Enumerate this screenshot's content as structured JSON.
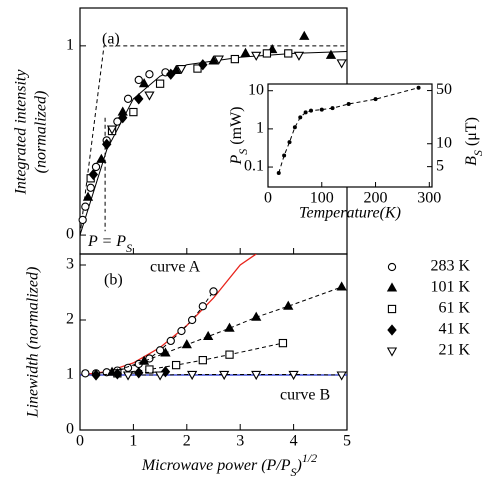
{
  "chart_data": [
    {
      "type": "scatter",
      "panel_label": "(a)",
      "y_label": [
        "Integrated intensity",
        "(normalized)"
      ],
      "annotation": [
        "P = P",
        "S"
      ],
      "xlim": [
        0,
        5
      ],
      "xticks": [
        0,
        1,
        2,
        3,
        4,
        5
      ],
      "ylim": [
        -0.1,
        1.2
      ],
      "yticks": [
        0,
        1
      ],
      "series": [
        {
          "marker": "circle",
          "color": "#000",
          "x": [
            0.05,
            0.1,
            0.2,
            0.3,
            0.5,
            0.7,
            0.9,
            1.1,
            1.3,
            1.6
          ],
          "values": [
            0.08,
            0.15,
            0.25,
            0.36,
            0.5,
            0.6,
            0.72,
            0.82,
            0.85,
            0.86
          ]
        },
        {
          "marker": "triangle",
          "color": "#000",
          "x": [
            0.15,
            0.4,
            0.8,
            1.2,
            1.8,
            2.5,
            3.1,
            3.6,
            4.2,
            4.7
          ],
          "values": [
            0.2,
            0.4,
            0.65,
            0.8,
            0.87,
            0.92,
            0.96,
            0.98,
            1.05,
            0.95
          ]
        },
        {
          "marker": "square",
          "color": "#000",
          "x": [
            0.2,
            0.6,
            1.0,
            1.5,
            2.2,
            2.9,
            3.5,
            3.9
          ],
          "values": [
            0.3,
            0.55,
            0.65,
            0.8,
            0.88,
            0.93,
            0.96,
            0.96
          ]
        },
        {
          "marker": "diamond",
          "color": "#000",
          "x": [
            0.25,
            0.5,
            0.8,
            1.1,
            1.7,
            2.3
          ],
          "values": [
            0.32,
            0.48,
            0.62,
            0.72,
            0.85,
            0.9
          ]
        },
        {
          "marker": "triangle-down",
          "color": "#000",
          "x": [
            0.6,
            1.3,
            1.9,
            2.6,
            3.3,
            4.1,
            4.9
          ],
          "values": [
            0.56,
            0.74,
            0.88,
            0.93,
            0.95,
            0.95,
            0.91
          ]
        }
      ],
      "lines": [
        {
          "linestyle": "solid",
          "color": "#000",
          "x": [
            0,
            0.5,
            1,
            1.5,
            2,
            3,
            4,
            5
          ],
          "values": [
            0,
            0.45,
            0.72,
            0.84,
            0.9,
            0.94,
            0.96,
            0.97
          ]
        },
        {
          "linestyle": "dashed",
          "color": "#000",
          "x": [
            0,
            0.45,
            5
          ],
          "values": [
            0,
            1,
            1
          ]
        },
        {
          "linestyle": "dashed",
          "color": "#000",
          "x": [
            0.47,
            0.47
          ],
          "values": [
            0.62,
            0.02
          ]
        }
      ]
    },
    {
      "type": "line",
      "x_label": "Temperature(K)",
      "y_label": [
        "P",
        "S",
        " (mW)"
      ],
      "y2_label": [
        "B",
        "S",
        " (μT)"
      ],
      "xlim": [
        0,
        305
      ],
      "xticks": [
        0,
        100,
        200,
        300
      ],
      "ylim": [
        0.03,
        15
      ],
      "yticks": [
        0.1,
        1,
        10
      ],
      "yscale": "log",
      "y2lim": [
        2.7,
        61
      ],
      "y2ticks": [
        5,
        10,
        50
      ],
      "y2scale": "log",
      "series": [
        {
          "color": "#000",
          "linestyle": "dashed",
          "x": [
            20,
            30,
            40,
            50,
            60,
            70,
            80,
            100,
            120,
            150,
            200,
            280
          ],
          "values": [
            0.07,
            0.2,
            0.45,
            1.1,
            2.0,
            2.7,
            3.0,
            3.2,
            3.5,
            4.5,
            6,
            12
          ]
        }
      ]
    },
    {
      "type": "scatter",
      "panel_label": "(b)",
      "y_label": "Linewidth (normalized)",
      "x_label": [
        "Microwave power  (P/P",
        "S",
        ")",
        "1/2"
      ],
      "xlim": [
        0,
        5
      ],
      "xticks": [
        0,
        1,
        2,
        3,
        4,
        5
      ],
      "ylim": [
        0,
        3.2
      ],
      "yticks": [
        0,
        1,
        2,
        3
      ],
      "series": [
        {
          "name": "283 K",
          "marker": "circle",
          "color": "#000",
          "x": [
            0.1,
            0.3,
            0.5,
            0.7,
            0.9,
            1.1,
            1.3,
            1.5,
            1.7,
            1.9,
            2.1,
            2.3,
            2.5
          ],
          "values": [
            1.03,
            1.03,
            1.05,
            1.08,
            1.13,
            1.2,
            1.3,
            1.45,
            1.62,
            1.8,
            2.0,
            2.25,
            2.52
          ]
        },
        {
          "name": "101 K",
          "marker": "triangle",
          "color": "#000",
          "x": [
            0.6,
            1.2,
            1.6,
            2.0,
            2.4,
            2.8,
            3.3,
            3.9,
            4.9
          ],
          "values": [
            1.05,
            1.25,
            1.4,
            1.55,
            1.7,
            1.85,
            2.05,
            2.25,
            2.6
          ]
        },
        {
          "name": "61 K",
          "marker": "square",
          "color": "#000",
          "x": [
            0.7,
            1.3,
            1.8,
            2.3,
            2.8,
            3.8
          ],
          "values": [
            1.03,
            1.1,
            1.18,
            1.27,
            1.37,
            1.58
          ]
        },
        {
          "name": "41 K",
          "marker": "diamond",
          "color": "#000",
          "x": [
            0.3,
            0.7,
            1.1,
            1.6
          ],
          "values": [
            1.0,
            1.02,
            1.04,
            1.06
          ]
        },
        {
          "name": "21 K",
          "marker": "triangle-down",
          "color": "#000",
          "x": [
            0.9,
            1.5,
            2.1,
            2.7,
            3.3,
            4.0,
            4.9
          ],
          "values": [
            1.0,
            1.0,
            1.01,
            1.01,
            1.01,
            1.01,
            1.0
          ]
        }
      ],
      "curves": [
        {
          "name": "curve A",
          "color": "#e8241c",
          "x": [
            0,
            0.5,
            1,
            1.5,
            2,
            2.5,
            3,
            3.3
          ],
          "values": [
            1.0,
            1.06,
            1.22,
            1.5,
            1.9,
            2.4,
            3.0,
            3.2
          ]
        },
        {
          "name": "curve B",
          "color": "#1f2fd0",
          "x": [
            0,
            5
          ],
          "values": [
            1,
            1
          ]
        }
      ]
    }
  ]
}
